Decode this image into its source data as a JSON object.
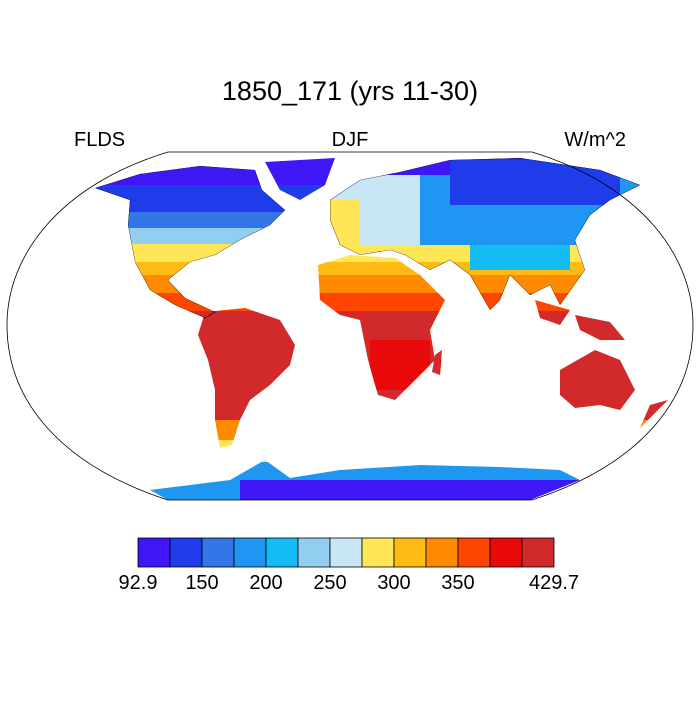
{
  "title": "1850_171 (yrs 11-30)",
  "left_label": "FLDS",
  "center_label": "DJF",
  "right_label": "W/m^2",
  "colorbar": {
    "colors": [
      "#3f16f5",
      "#1f3cea",
      "#3476e8",
      "#1f96f2",
      "#14bbf5",
      "#93cdf0",
      "#c9e6f7",
      "#ffe657",
      "#ffbb14",
      "#ff8a00",
      "#ff4600",
      "#e80a0a",
      "#d22a2a"
    ],
    "ticks": [
      92.9,
      150,
      200,
      250,
      300,
      350,
      429.7
    ]
  }
}
